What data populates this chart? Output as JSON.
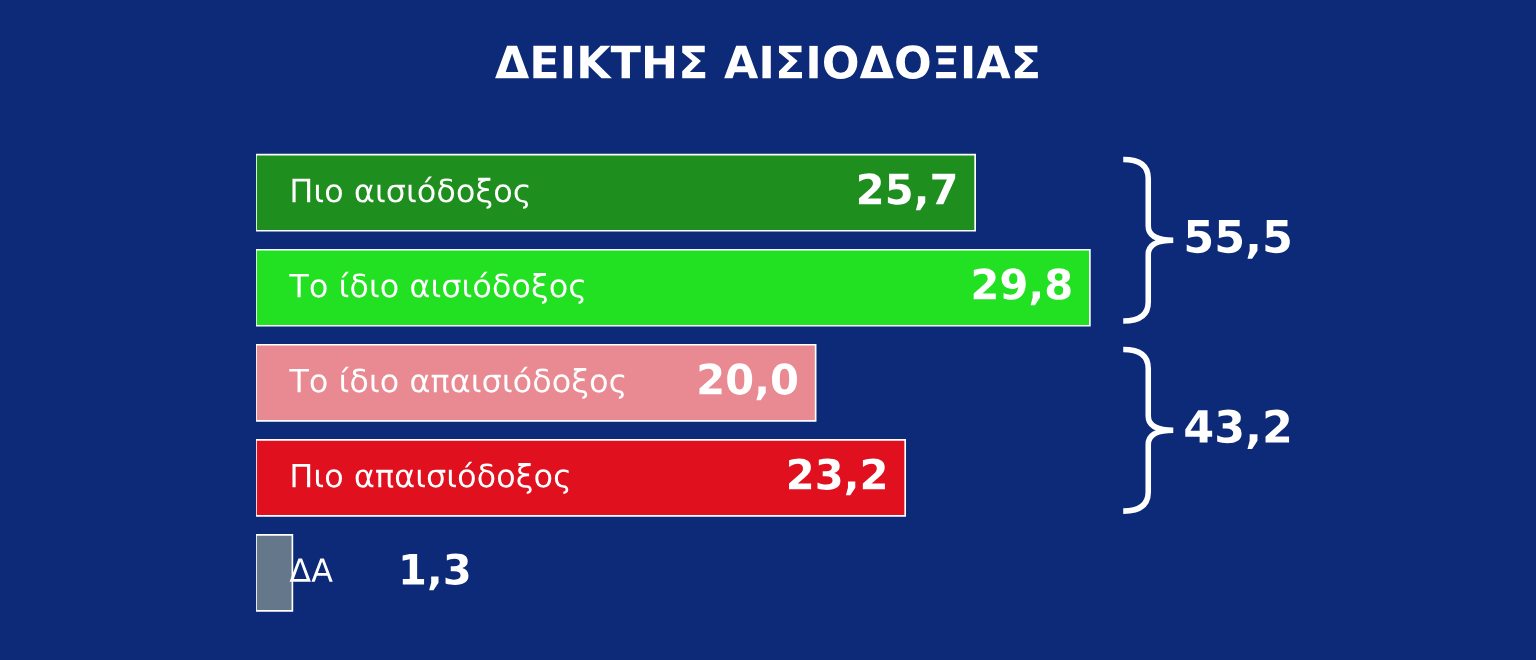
{
  "chart_data": {
    "type": "bar",
    "orientation": "horizontal",
    "title": "ΔΕΙΚΤΗΣ ΑΙΣΙΟΔΟΞΙΑΣ",
    "categories": [
      "Πιο αισιόδοξος",
      "Το ίδιο αισιόδοξος",
      "Το ίδιο απαισιόδοξος",
      "Πιο απαισιόδοξος",
      "ΔΑ"
    ],
    "values": [
      25.7,
      29.8,
      20.0,
      23.2,
      1.3
    ],
    "colors": [
      "#1e8f1e",
      "#22e022",
      "#e98a92",
      "#e0101e",
      "#65778a"
    ],
    "value_labels": [
      "25,7",
      "29,8",
      "20,0",
      "23,2",
      "1,3"
    ],
    "annotations": [
      "55,5",
      "43,2"
    ]
  }
}
